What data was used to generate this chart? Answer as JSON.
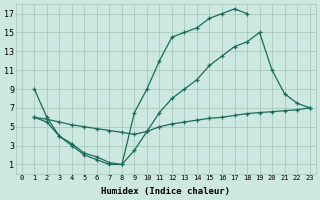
{
  "xlabel": "Humidex (Indice chaleur)",
  "bg_color": "#cce8e0",
  "grid_color": "#aaccbb",
  "line_color": "#1a6b5a",
  "xlim": [
    -0.5,
    23.5
  ],
  "ylim": [
    0,
    18
  ],
  "xticks": [
    0,
    1,
    2,
    3,
    4,
    5,
    6,
    7,
    8,
    9,
    10,
    11,
    12,
    13,
    14,
    15,
    16,
    17,
    18,
    19,
    20,
    21,
    22,
    23
  ],
  "yticks": [
    1,
    3,
    5,
    7,
    9,
    11,
    13,
    15,
    17
  ],
  "line1_x": [
    1,
    2,
    3,
    4,
    5,
    6,
    7,
    8,
    9,
    10,
    11,
    12,
    13,
    14,
    15,
    16,
    17,
    18
  ],
  "line1_y": [
    9,
    6,
    4,
    3,
    2,
    1.5,
    1,
    1,
    6.5,
    9,
    12,
    14.5,
    15,
    15.5,
    16.5,
    17,
    17.5,
    17
  ],
  "line2_x": [
    1,
    2,
    3,
    4,
    5,
    6,
    7,
    8,
    9,
    10,
    11,
    12,
    13,
    14,
    15,
    16,
    17,
    18,
    19,
    20,
    21,
    22,
    23
  ],
  "line2_y": [
    6.0,
    5.8,
    5.5,
    5.2,
    5.0,
    4.8,
    4.6,
    4.4,
    4.2,
    4.5,
    5.0,
    5.3,
    5.5,
    5.7,
    5.9,
    6.0,
    6.2,
    6.4,
    6.5,
    6.6,
    6.7,
    6.8,
    7.0
  ],
  "line3_x": [
    1,
    2,
    3,
    4,
    5,
    6,
    7,
    8,
    9,
    10,
    11,
    12,
    13,
    14,
    15,
    16,
    17,
    18,
    19,
    20,
    21,
    22,
    23
  ],
  "line3_y": [
    6.0,
    5.5,
    4.0,
    3.2,
    2.2,
    1.8,
    1.2,
    1.0,
    2.5,
    4.5,
    6.5,
    8.0,
    9.0,
    10.0,
    11.5,
    12.5,
    13.5,
    14.0,
    15.0,
    11.0,
    8.5,
    7.5,
    7.0
  ]
}
